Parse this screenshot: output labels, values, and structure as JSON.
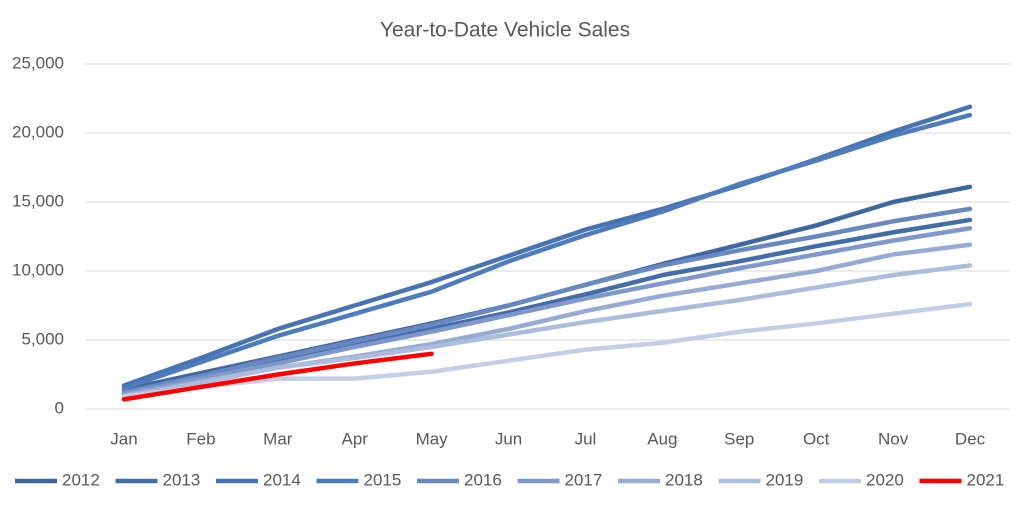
{
  "chart_data": {
    "type": "line",
    "title": "Year-to-Date Vehicle Sales",
    "categories": [
      "Jan",
      "Feb",
      "Mar",
      "Apr",
      "May",
      "Jun",
      "Jul",
      "Aug",
      "Sep",
      "Oct",
      "Nov",
      "Dec"
    ],
    "ylim": [
      0,
      25000
    ],
    "yticks": [
      0,
      {
        "value": 5000,
        "label": "5,000"
      },
      {
        "value": 10000,
        "label": "10,000"
      },
      {
        "value": 15000,
        "label": "15,000"
      },
      {
        "value": 20000,
        "label": "20,000"
      },
      {
        "value": 25000,
        "label": "25,000"
      }
    ],
    "grid": true,
    "legend": "bottom",
    "series": [
      {
        "name": "2012",
        "color": "#3f67a0",
        "values": [
          1400,
          2600,
          3800,
          5000,
          6200,
          7500,
          9000,
          10500,
          11900,
          13300,
          15000,
          16100
        ]
      },
      {
        "name": "2013",
        "color": "#426da8",
        "values": [
          1100,
          2300,
          3400,
          4600,
          5800,
          7000,
          8300,
          9700,
          10700,
          11800,
          12800,
          13700
        ]
      },
      {
        "name": "2014",
        "color": "#4773b2",
        "values": [
          1700,
          3700,
          5800,
          7500,
          9200,
          11100,
          13000,
          14500,
          16200,
          18100,
          20100,
          21900
        ]
      },
      {
        "name": "2015",
        "color": "#4d7cbc",
        "values": [
          1500,
          3400,
          5300,
          6900,
          8500,
          10700,
          12600,
          14300,
          16300,
          18000,
          19800,
          21300
        ]
      },
      {
        "name": "2016",
        "color": "#6888c2",
        "values": [
          1200,
          2400,
          3700,
          4900,
          6100,
          7500,
          9000,
          10400,
          11500,
          12500,
          13600,
          14500
        ]
      },
      {
        "name": "2017",
        "color": "#7f97ca",
        "values": [
          1100,
          2200,
          3300,
          4500,
          5600,
          6800,
          8000,
          9100,
          10200,
          11200,
          12200,
          13100
        ]
      },
      {
        "name": "2018",
        "color": "#96aad3",
        "values": [
          1000,
          2000,
          3000,
          3800,
          4700,
          5800,
          7100,
          8200,
          9100,
          10000,
          11200,
          11900
        ]
      },
      {
        "name": "2019",
        "color": "#abbcdc",
        "values": [
          900,
          1900,
          3000,
          3700,
          4500,
          5400,
          6300,
          7100,
          7900,
          8800,
          9700,
          10400
        ]
      },
      {
        "name": "2020",
        "color": "#c2cee6",
        "values": [
          900,
          1600,
          2200,
          2200,
          2700,
          3500,
          4300,
          4800,
          5600,
          6200,
          6900,
          7600
        ]
      },
      {
        "name": "2021",
        "color": "#ff0000",
        "values": [
          700,
          1600,
          2500,
          3300,
          4000,
          null,
          null,
          null,
          null,
          null,
          null,
          null
        ]
      }
    ]
  }
}
